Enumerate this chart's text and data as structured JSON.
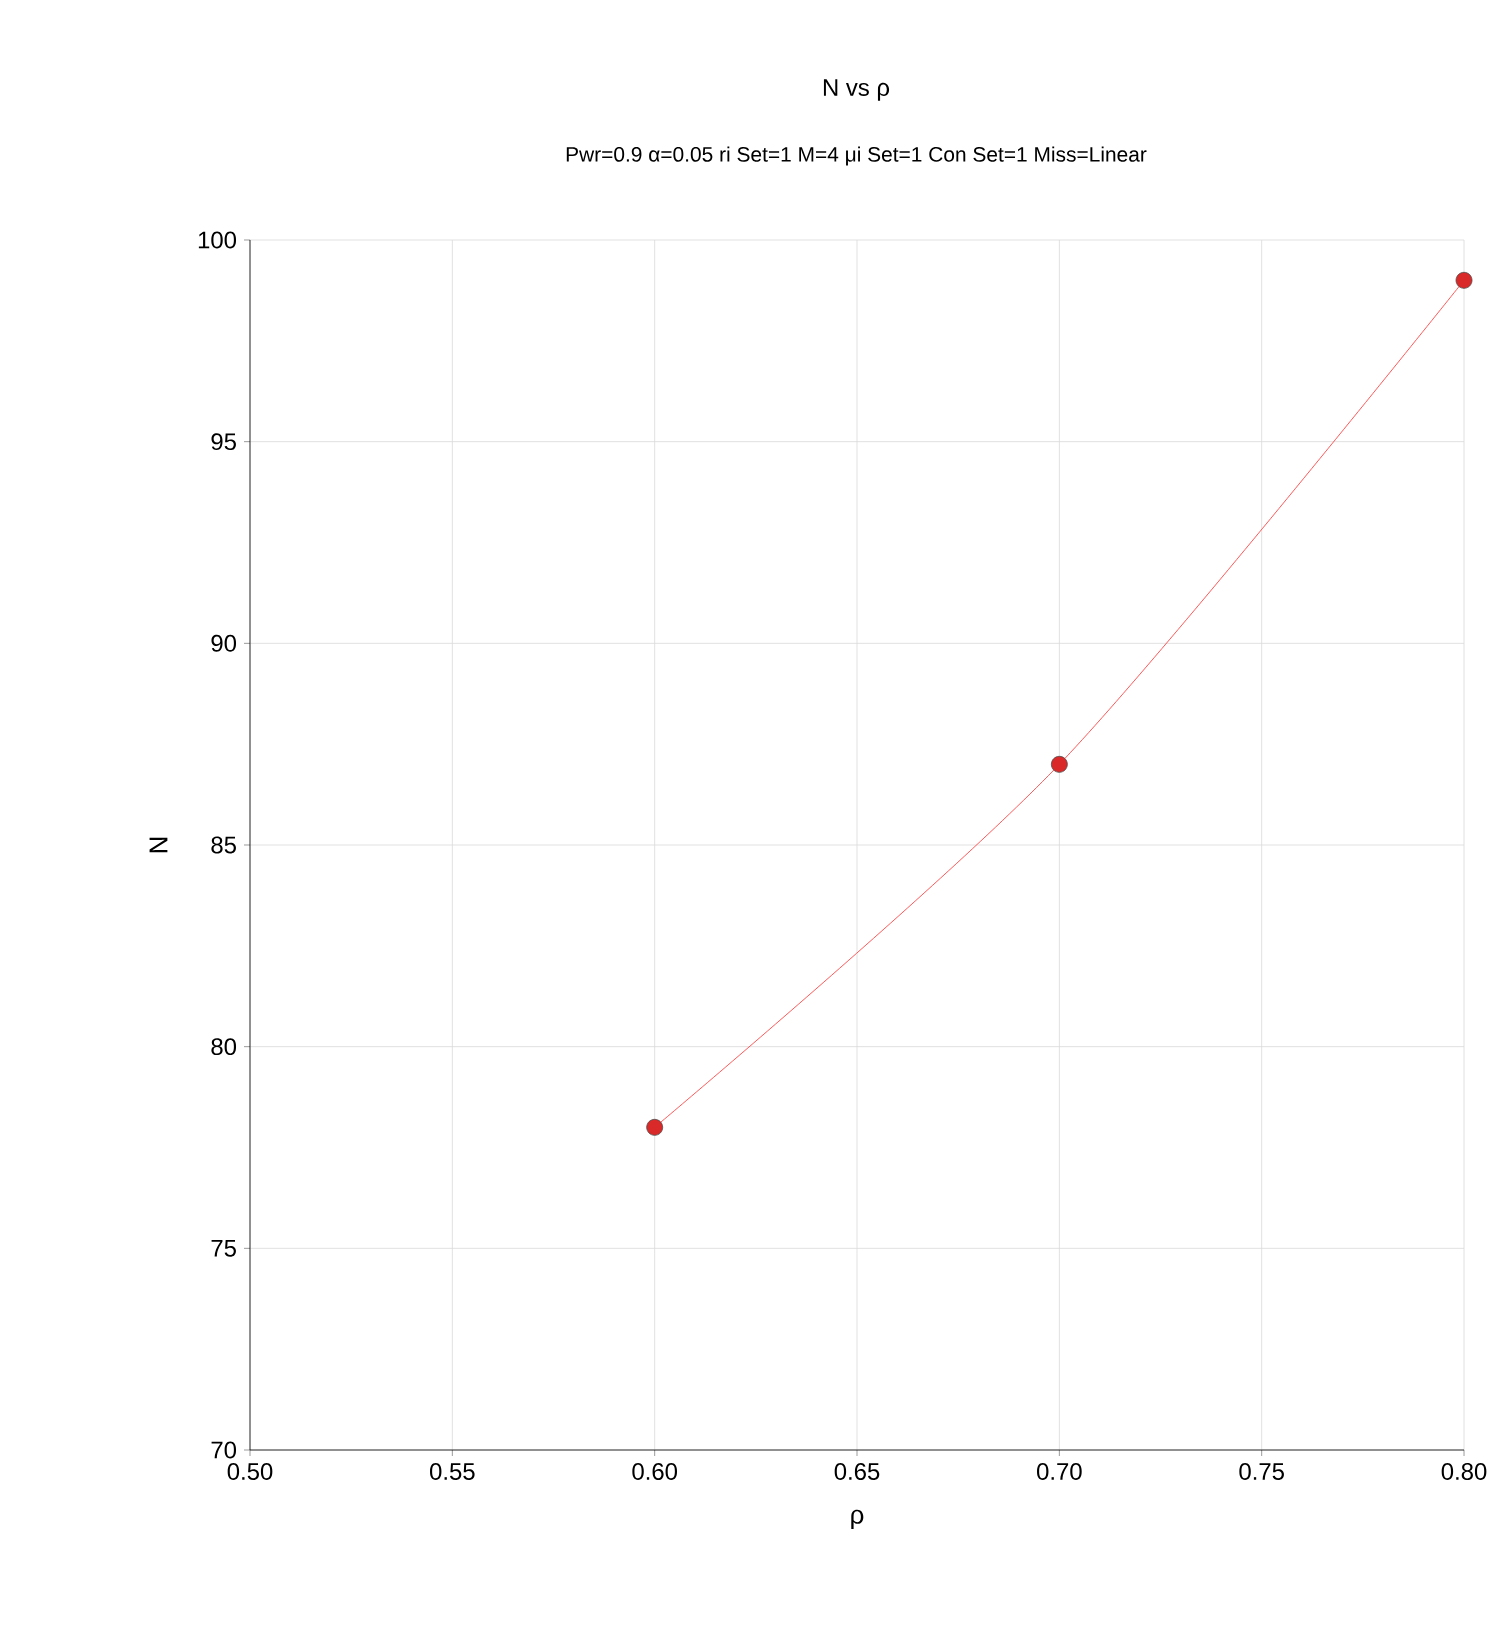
{
  "chart_data": {
    "type": "line",
    "title": "N vs ρ",
    "subtitle": "Pwr=0.9 α=0.05 ri Set=1 M=4 μi Set=1 Con Set=1 Miss=Linear",
    "xlabel": "ρ",
    "ylabel": "N",
    "x": [
      0.6,
      0.7,
      0.8
    ],
    "series": [
      {
        "color": "#ff3030",
        "values": [
          78,
          87,
          99
        ]
      }
    ],
    "xlim": [
      0.5,
      0.8
    ],
    "xticks": [
      {
        "value": 0.5,
        "label": "0.50"
      },
      {
        "value": 0.55,
        "label": "0.55"
      },
      {
        "value": 0.6,
        "label": "0.60"
      },
      {
        "value": 0.65,
        "label": "0.65"
      },
      {
        "value": 0.7,
        "label": "0.70"
      },
      {
        "value": 0.75,
        "label": "0.75"
      },
      {
        "value": 0.8,
        "label": "0.80"
      }
    ],
    "ylim": [
      70,
      100
    ],
    "yticks": [
      70,
      75,
      80,
      85,
      90,
      95,
      100
    ],
    "grid": true,
    "marker": "circle",
    "line_style": "solid"
  }
}
